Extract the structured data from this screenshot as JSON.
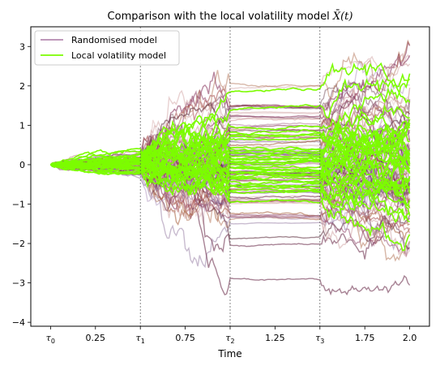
{
  "chart_data": {
    "type": "line",
    "title": "Comparison with the local volatility model",
    "title_symbol": "X̄(t)",
    "xlabel": "Time",
    "ylabel": "",
    "xlim": [
      -0.11,
      2.11
    ],
    "ylim": [
      -4.1,
      3.5
    ],
    "x_ticks": [
      {
        "value": 0.0,
        "label": "τ",
        "sub": "0"
      },
      {
        "value": 0.25,
        "label": "0.25",
        "sub": ""
      },
      {
        "value": 0.5,
        "label": "τ",
        "sub": "1"
      },
      {
        "value": 0.75,
        "label": "0.75",
        "sub": ""
      },
      {
        "value": 1.0,
        "label": "τ",
        "sub": "2"
      },
      {
        "value": 1.25,
        "label": "1.25",
        "sub": ""
      },
      {
        "value": 1.5,
        "label": "τ",
        "sub": "3"
      },
      {
        "value": 1.75,
        "label": "1.75",
        "sub": ""
      },
      {
        "value": 2.0,
        "label": "2.0",
        "sub": ""
      }
    ],
    "y_ticks": [
      {
        "value": 3,
        "label": "3"
      },
      {
        "value": 2,
        "label": "2"
      },
      {
        "value": 1,
        "label": "1"
      },
      {
        "value": 0,
        "label": "0"
      },
      {
        "value": -1,
        "label": "−1"
      },
      {
        "value": -2,
        "label": "−2"
      },
      {
        "value": -3,
        "label": "−3"
      },
      {
        "value": -4,
        "label": "−4"
      }
    ],
    "vlines": [
      0.5,
      1.0,
      1.5
    ],
    "legend_position": "upper left",
    "series": [
      {
        "name": "Randomised model",
        "color": "#b489b0",
        "paths": 90,
        "description": "many faint paths, colored in a purple-brown gradient"
      },
      {
        "name": "Local volatility model",
        "color": "#7cfc00",
        "paths": 35
      }
    ],
    "grid": false
  }
}
